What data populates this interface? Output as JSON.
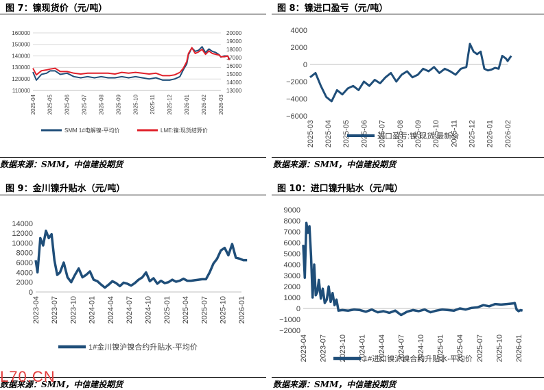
{
  "panels": [
    {
      "title": "图 7：镍现货价（元/吨）",
      "source": "数据来源：SMM，中信建投期货"
    },
    {
      "title": "图 8：镍进口盈亏（元/吨）",
      "source": "数据来源：SMM，中信建投期货"
    },
    {
      "title": "图 9：金川镍升贴水（元/吨）",
      "source": "数据来源：SMM，中信建投期货"
    },
    {
      "title": "图 10：进口镍升贴水（元/吨）",
      "source": "数据来源：SMM，中信建投期货"
    }
  ],
  "watermark": "L70.CN",
  "chart_data": [
    {
      "type": "line",
      "x_ticks": [
        "2025-04",
        "2025-05",
        "2025-06",
        "2025-07",
        "2025-08",
        "2025-09",
        "2025-10",
        "2025-11",
        "2025-12",
        "2026-01",
        "2026-02",
        "2026-03"
      ],
      "y_ticks": [
        "160000",
        "150000",
        "140000",
        "130000",
        "120000",
        "110000"
      ],
      "y2_ticks": [
        "20000",
        "19000",
        "18000",
        "17000",
        "16000",
        "15000",
        "14000",
        "13000"
      ],
      "ylim": [
        110000,
        160000
      ],
      "y2lim": [
        13000,
        20000
      ],
      "grid": true,
      "legend_position": "bottom",
      "colors": [
        "#1f4e79",
        "#e0202a"
      ],
      "series": [
        {
          "name": "SMM 1#电解镍-平均价",
          "axis": "left",
          "x": [
            0,
            0.2,
            0.5,
            0.8,
            1,
            1.3,
            1.6,
            2,
            2.4,
            2.8,
            3.2,
            3.6,
            4,
            4.4,
            4.8,
            5.2,
            5.6,
            6,
            6.4,
            6.8,
            7.2,
            7.6,
            8,
            8.3,
            8.6,
            8.8,
            9,
            9.1,
            9.3,
            9.5,
            9.7,
            9.9,
            10.1,
            10.3,
            10.5,
            10.7,
            10.9,
            11,
            11.2,
            11.4,
            11.5
          ],
          "y": [
            126000,
            119000,
            124000,
            125000,
            127000,
            127000,
            124000,
            125000,
            122000,
            121000,
            122000,
            121000,
            122000,
            121000,
            121000,
            122000,
            121000,
            122000,
            121000,
            120000,
            121000,
            119000,
            119000,
            120000,
            122000,
            128000,
            133000,
            141000,
            147000,
            144000,
            145000,
            148000,
            143000,
            146000,
            144000,
            143000,
            141000,
            139000,
            140000,
            140000,
            137000
          ]
        },
        {
          "name": "LME:镍:现货结算价",
          "axis": "right",
          "x": [
            0,
            0.2,
            0.5,
            0.8,
            1,
            1.3,
            1.6,
            2,
            2.4,
            2.8,
            3.2,
            3.6,
            4,
            4.4,
            4.8,
            5.2,
            5.6,
            6,
            6.4,
            6.8,
            7.2,
            7.6,
            8,
            8.3,
            8.6,
            8.8,
            9,
            9.1,
            9.3,
            9.5,
            9.7,
            9.9,
            10.1,
            10.3,
            10.5,
            10.7,
            10.9,
            11,
            11.2,
            11.4,
            11.5
          ],
          "y": [
            15700,
            14900,
            15400,
            15500,
            15600,
            15700,
            15300,
            15300,
            15100,
            15000,
            15100,
            15100,
            15100,
            15100,
            15000,
            15200,
            15100,
            15200,
            15100,
            15000,
            15100,
            14800,
            14800,
            14900,
            15200,
            15700,
            16500,
            17500,
            18200,
            17500,
            17700,
            18000,
            17400,
            17800,
            17500,
            17400,
            17300,
            17100,
            17100,
            17200,
            16700
          ]
        }
      ]
    },
    {
      "type": "line",
      "x_ticks": [
        "2025-03",
        "2025-04",
        "2025-05",
        "2025-06",
        "2025-07",
        "2025-08",
        "2025-09",
        "2025-10",
        "2025-11",
        "2025-12",
        "2026-01",
        "2026-02"
      ],
      "y_ticks": [
        "4000",
        "2000",
        "0",
        "−2000",
        "−4000",
        "−6000"
      ],
      "ylim": [
        -6000,
        4000
      ],
      "grid": false,
      "legend_position": "bottom",
      "colors": [
        "#1f4e79"
      ],
      "series": [
        {
          "name": "进口盈亏:镍:现货:最新价",
          "x": [
            0,
            0.3,
            0.6,
            0.9,
            1.2,
            1.5,
            1.8,
            2.1,
            2.4,
            2.7,
            3,
            3.3,
            3.6,
            3.9,
            4.2,
            4.5,
            4.8,
            5.1,
            5.4,
            5.7,
            6,
            6.3,
            6.6,
            6.9,
            7.2,
            7.5,
            7.8,
            8.1,
            8.4,
            8.7,
            8.9,
            9.1,
            9.3,
            9.5,
            9.7,
            9.9,
            10.1,
            10.3,
            10.5,
            10.7,
            10.9,
            11,
            11.2
          ],
          "y": [
            -1500,
            -1000,
            -2500,
            -3800,
            -4300,
            -3000,
            -3500,
            -2800,
            -2500,
            -3000,
            -2000,
            -2500,
            -1800,
            -2200,
            -1500,
            -1000,
            -2000,
            -1200,
            -800,
            -1500,
            -1200,
            -500,
            -800,
            -300,
            -1000,
            -500,
            -800,
            -1200,
            -500,
            -300,
            2400,
            1500,
            1200,
            1500,
            -500,
            -700,
            -600,
            -400,
            -500,
            1000,
            700,
            400,
            1000
          ]
        }
      ]
    },
    {
      "type": "line",
      "x_ticks": [
        "2023-04",
        "2023-07",
        "2023-10",
        "2024-01",
        "2024-04",
        "2024-07",
        "2024-10",
        "2025-01",
        "2025-04",
        "2025-07",
        "2025-10",
        "2026-01"
      ],
      "y_ticks": [
        "14000",
        "12000",
        "10000",
        "8000",
        "6000",
        "4000",
        "2000",
        "0"
      ],
      "ylim": [
        0,
        14000
      ],
      "grid": false,
      "legend_position": "bottom",
      "colors": [
        "#1f4e79"
      ],
      "series": [
        {
          "name": "1#金川镍沪镍合约升贴水-平均价",
          "x": [
            0,
            0.1,
            0.25,
            0.4,
            0.55,
            0.7,
            0.85,
            1,
            1.15,
            1.3,
            1.5,
            1.7,
            1.9,
            2.1,
            2.3,
            2.5,
            2.7,
            2.9,
            3.1,
            3.3,
            3.5,
            3.7,
            3.9,
            4.1,
            4.3,
            4.5,
            4.7,
            4.9,
            5.1,
            5.3,
            5.5,
            5.7,
            5.9,
            6.1,
            6.3,
            6.5,
            6.7,
            6.9,
            7.1,
            7.3,
            7.5,
            7.7,
            7.9,
            8.1,
            8.3,
            8.5,
            8.7,
            8.9,
            9.1,
            9.3,
            9.5,
            9.7,
            9.9,
            10.1,
            10.3,
            10.5,
            10.7,
            10.9,
            11.1,
            11.3
          ],
          "y": [
            6500,
            4000,
            11000,
            9500,
            12500,
            11000,
            11800,
            6500,
            3500,
            4000,
            6000,
            3000,
            2000,
            3500,
            4800,
            3000,
            3500,
            4200,
            2500,
            2200,
            1500,
            900,
            1500,
            2200,
            1800,
            1200,
            1900,
            1700,
            1300,
            1800,
            2500,
            3000,
            4000,
            2200,
            2800,
            1700,
            2300,
            1800,
            2000,
            2500,
            2100,
            2300,
            2700,
            2300,
            2300,
            2400,
            2500,
            2600,
            2600,
            4000,
            5800,
            6800,
            8500,
            9000,
            7500,
            9800,
            7000,
            6800,
            6500,
            6500
          ]
        }
      ]
    },
    {
      "type": "line",
      "x_ticks": [
        "2023-04",
        "2023-07",
        "2023-10",
        "2024-01",
        "2024-04",
        "2024-07",
        "2024-10",
        "2025-01",
        "2025-04",
        "2025-07",
        "2025-10",
        "2026-01"
      ],
      "y_ticks": [
        "9000",
        "8000",
        "7000",
        "6000",
        "5000",
        "4000",
        "3000",
        "2000",
        "1000",
        "0",
        "−1000",
        "−2000"
      ],
      "ylim": [
        -2000,
        9000
      ],
      "grid": false,
      "legend_position": "bottom",
      "colors": [
        "#1f4e79"
      ],
      "series": [
        {
          "name": "1#进口镍沪镍合约升贴水-平均价",
          "x": [
            0,
            0.08,
            0.16,
            0.24,
            0.32,
            0.4,
            0.48,
            0.56,
            0.64,
            0.72,
            0.8,
            0.9,
            1,
            1.1,
            1.2,
            1.3,
            1.4,
            1.5,
            1.6,
            1.7,
            1.8,
            2,
            2.3,
            2.6,
            2.9,
            3.2,
            3.5,
            3.8,
            4.1,
            4.4,
            4.7,
            5,
            5.3,
            5.6,
            5.9,
            6.2,
            6.5,
            6.8,
            7.1,
            7.4,
            7.7,
            8,
            8.3,
            8.6,
            8.9,
            9.2,
            9.5,
            9.8,
            10.1,
            10.4,
            10.7,
            10.8,
            10.9,
            11,
            11.1,
            11.2
          ],
          "y": [
            5800,
            2800,
            7800,
            6900,
            7500,
            4800,
            1000,
            4000,
            1200,
            1500,
            2600,
            900,
            1800,
            500,
            800,
            2000,
            600,
            1400,
            300,
            800,
            -200,
            -150,
            -200,
            -100,
            -150,
            -300,
            -100,
            -350,
            -250,
            -400,
            -200,
            -600,
            -300,
            -150,
            -250,
            -100,
            -350,
            -200,
            -100,
            -150,
            -200,
            0,
            -100,
            50,
            100,
            300,
            200,
            400,
            350,
            400,
            450,
            500,
            -100,
            -250,
            -150,
            -200
          ]
        }
      ]
    }
  ]
}
